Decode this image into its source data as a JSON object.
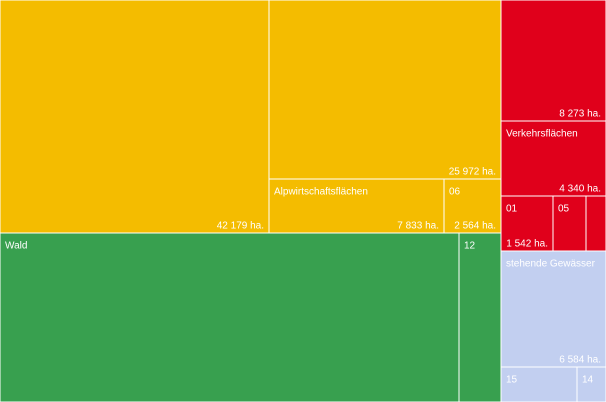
{
  "chart_data": {
    "type": "treemap",
    "categories": [
      null,
      null,
      "Alpwirtschaftsflächen",
      "06",
      "Wald",
      "12",
      null,
      "Verkehrsflächen",
      "01",
      "05",
      null,
      "stehende Gewässer",
      "15",
      "14"
    ],
    "values": [
      42179,
      25972,
      7833,
      2564,
      54000,
      4800,
      8273,
      4340,
      1542,
      1000,
      600,
      6584,
      1800,
      700
    ],
    "value_labels": [
      "42 179 ha.",
      "25 972 ha.",
      "7 833 ha.",
      "2 564 ha.",
      null,
      null,
      "8 273 ha.",
      "4 340 ha.",
      "1 542 ha.",
      null,
      null,
      "6 584 ha.",
      null,
      null
    ],
    "colors": [
      "#f4bc00",
      "#f4bc00",
      "#f4bc00",
      "#f4bc00",
      "#38a04f",
      "#38a04f",
      "#e0001b",
      "#e0001b",
      "#e0001b",
      "#e0001b",
      "#e0001b",
      "#c2cff0",
      "#c2cff0",
      "#c2cff0"
    ]
  }
}
